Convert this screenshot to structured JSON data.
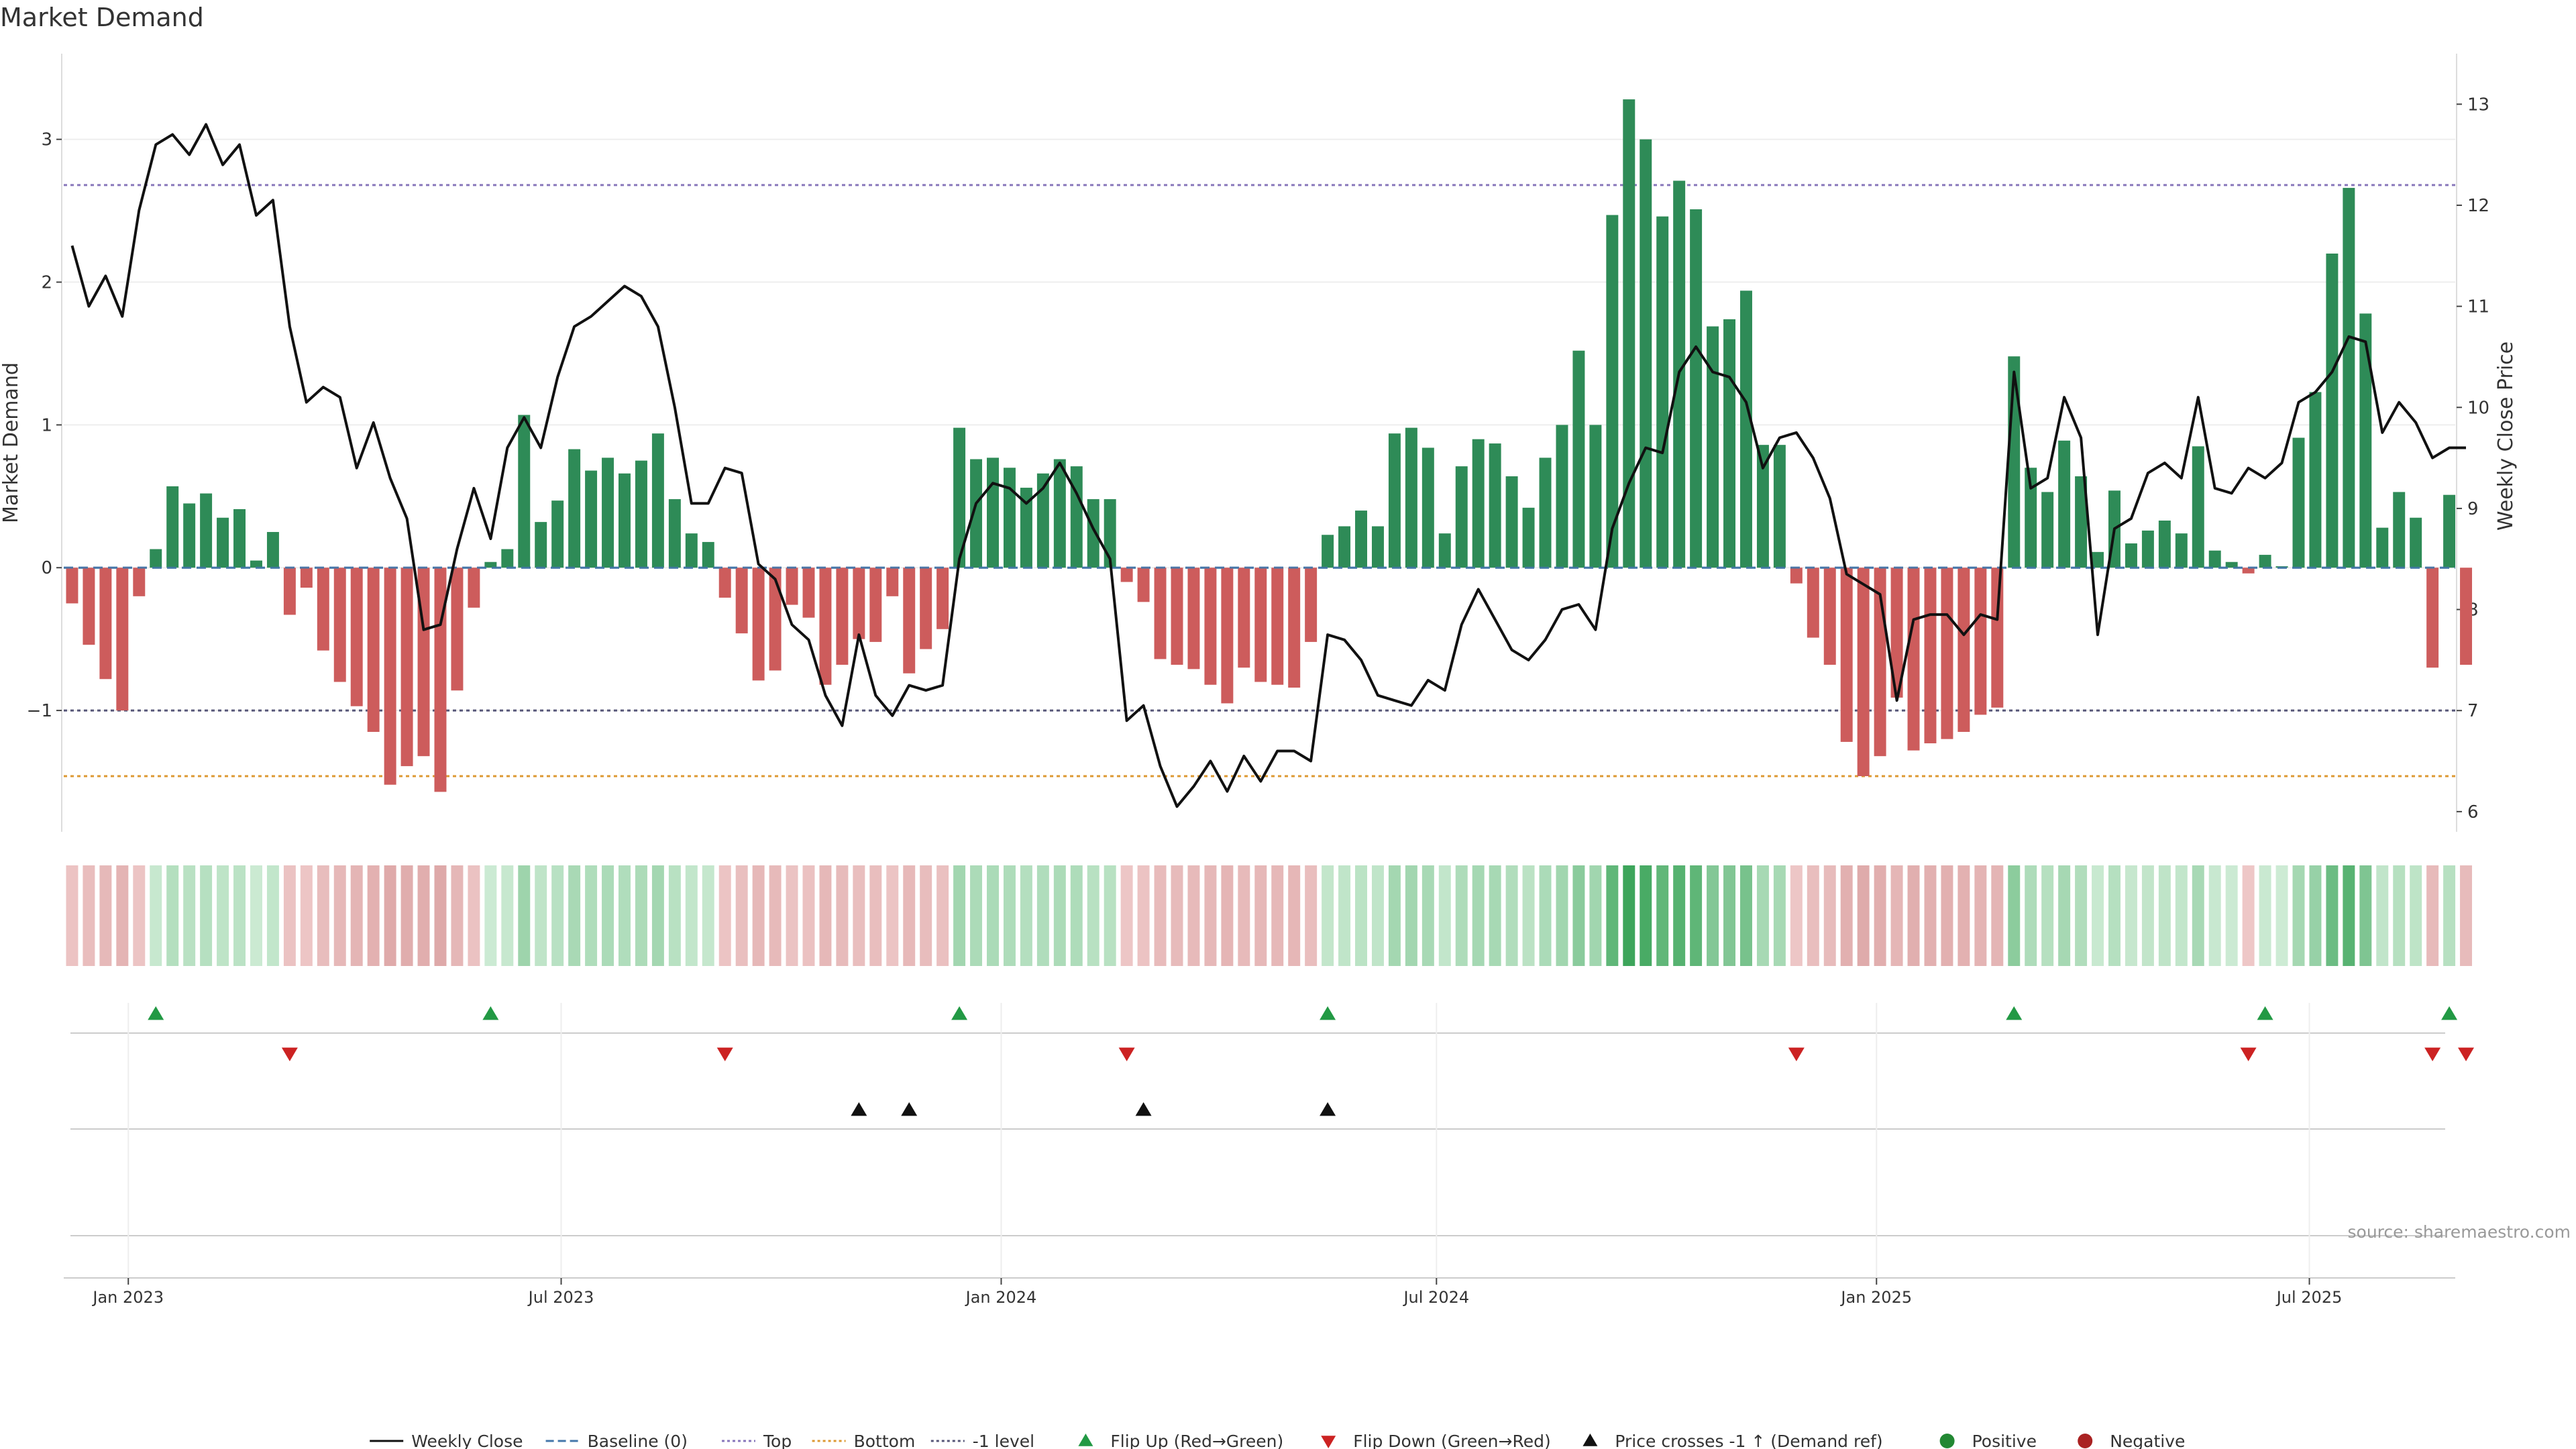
{
  "title": "Market Demand",
  "source": "source: sharemaestro.com",
  "chart_data": {
    "type": "bar",
    "title": "Market Demand",
    "ylabel": "Market Demand",
    "y2label": "Weekly Close Price",
    "ylim": [
      -1.85,
      3.6
    ],
    "y2lim": [
      5.8,
      13.5
    ],
    "yticks": [
      -1,
      0,
      1,
      2,
      3
    ],
    "y2ticks": [
      6,
      7,
      8,
      9,
      10,
      11,
      12,
      13
    ],
    "x_start": "2022-12-05",
    "x_end": "2025-08-31",
    "week_step_days": 7,
    "xticks": [
      {
        "label": "Jan 2023",
        "date": "2023-01-01"
      },
      {
        "label": "Jul 2023",
        "date": "2023-07-01"
      },
      {
        "label": "Jan 2024",
        "date": "2024-01-01"
      },
      {
        "label": "Jul 2024",
        "date": "2024-07-01"
      },
      {
        "label": "Jan 2025",
        "date": "2025-01-01"
      },
      {
        "label": "Jul 2025",
        "date": "2025-07-01"
      }
    ],
    "reference_lines": [
      {
        "name": "Top",
        "value": 2.68,
        "color": "#8877bb"
      },
      {
        "name": "Bottom",
        "value": -1.46,
        "color": "#dd9933"
      },
      {
        "name": "-1 level",
        "value": -1.0,
        "color": "#555577"
      },
      {
        "name": "Baseline (0)",
        "value": 0,
        "color": "#4477aa"
      }
    ],
    "colors": {
      "positive": "#2e8b57",
      "negative": "#cd5c5c",
      "price": "#111111",
      "flip_up": "#229944",
      "flip_down": "#cc2222",
      "cross": "#111111"
    },
    "series": [
      {
        "name": "Market Demand",
        "values": [
          -0.25,
          -0.54,
          -0.78,
          -1.0,
          -0.2,
          0.13,
          0.57,
          0.45,
          0.52,
          0.35,
          0.41,
          0.05,
          0.25,
          -0.33,
          -0.14,
          -0.58,
          -0.8,
          -0.97,
          -1.15,
          -1.52,
          -1.39,
          -1.32,
          -1.57,
          -0.86,
          -0.28,
          0.04,
          0.13,
          1.07,
          0.32,
          0.47,
          0.83,
          0.68,
          0.77,
          0.66,
          0.75,
          0.94,
          0.48,
          0.24,
          0.18,
          -0.21,
          -0.46,
          -0.79,
          -0.72,
          -0.26,
          -0.35,
          -0.82,
          -0.68,
          -0.5,
          -0.52,
          -0.2,
          -0.74,
          -0.57,
          -0.43,
          0.98,
          0.76,
          0.77,
          0.7,
          0.56,
          0.66,
          0.76,
          0.71,
          0.48,
          0.48,
          -0.1,
          -0.24,
          -0.64,
          -0.68,
          -0.71,
          -0.82,
          -0.95,
          -0.7,
          -0.8,
          -0.82,
          -0.84,
          -0.52,
          0.23,
          0.29,
          0.4,
          0.29,
          0.94,
          0.98,
          0.84,
          0.24,
          0.71,
          0.9,
          0.87,
          0.64,
          0.42,
          0.77,
          1.0,
          1.52,
          1.0,
          2.47,
          3.28,
          3.0,
          2.46,
          2.71,
          2.51,
          1.69,
          1.74,
          1.94,
          0.86,
          0.86,
          -0.11,
          -0.49,
          -0.68,
          -1.22,
          -1.46,
          -1.32,
          -0.91,
          -1.28,
          -1.23,
          -1.2,
          -1.15,
          -1.03,
          -0.98,
          1.48,
          0.7,
          0.53,
          0.89,
          0.64,
          0.11,
          0.54,
          0.17,
          0.26,
          0.33,
          0.24,
          0.85,
          0.12,
          0.04,
          -0.04,
          0.09,
          0.01,
          0.91,
          1.23,
          2.2,
          2.66,
          1.78,
          0.28,
          0.53,
          0.35,
          -0.7,
          0.51,
          -0.68
        ]
      },
      {
        "name": "Weekly Close",
        "values": [
          11.6,
          11.0,
          11.3,
          10.9,
          11.95,
          12.6,
          12.7,
          12.5,
          12.8,
          12.4,
          12.6,
          11.9,
          12.05,
          10.8,
          10.05,
          10.2,
          10.1,
          9.4,
          9.85,
          9.3,
          8.9,
          7.8,
          7.85,
          8.6,
          9.2,
          8.7,
          9.6,
          9.9,
          9.6,
          10.3,
          10.8,
          10.9,
          11.05,
          11.2,
          11.1,
          10.8,
          10.0,
          9.05,
          9.05,
          9.4,
          9.35,
          8.45,
          8.3,
          7.85,
          7.7,
          7.15,
          6.85,
          7.75,
          7.15,
          6.95,
          7.25,
          7.2,
          7.25,
          8.5,
          9.05,
          9.25,
          9.2,
          9.05,
          9.2,
          9.45,
          9.15,
          8.8,
          8.5,
          6.9,
          7.05,
          6.45,
          6.05,
          6.25,
          6.5,
          6.2,
          6.55,
          6.3,
          6.6,
          6.6,
          6.5,
          7.75,
          7.7,
          7.5,
          7.15,
          7.1,
          7.05,
          7.3,
          7.2,
          7.85,
          8.2,
          7.9,
          7.6,
          7.5,
          7.7,
          8.0,
          8.05,
          7.8,
          8.8,
          9.25,
          9.6,
          9.55,
          10.35,
          10.6,
          10.35,
          10.3,
          10.05,
          9.4,
          9.7,
          9.75,
          9.5,
          9.1,
          8.35,
          8.25,
          8.15,
          7.1,
          7.9,
          7.95,
          7.95,
          7.75,
          7.95,
          7.9,
          10.35,
          9.2,
          9.3,
          10.1,
          9.7,
          7.75,
          8.8,
          8.9,
          9.35,
          9.45,
          9.3,
          10.1,
          9.2,
          9.15,
          9.4,
          9.3,
          9.45,
          10.05,
          10.15,
          10.35,
          10.7,
          10.65,
          9.75,
          10.05,
          9.85,
          9.5,
          9.6,
          9.6
        ]
      }
    ],
    "heat_strip": {
      "description": "color intensity by Market Demand value"
    },
    "flip_up_indices": [
      5,
      25,
      53,
      75,
      116,
      131,
      142
    ],
    "flip_down_indices": [
      13,
      39,
      63,
      103,
      130,
      141,
      143
    ],
    "price_cross_indices": [
      47,
      50,
      64,
      75
    ],
    "legend": [
      {
        "label": "Weekly Close",
        "kind": "line-solid",
        "color": "#111111"
      },
      {
        "label": "Baseline (0)",
        "kind": "line-dashed",
        "color": "#4477aa"
      },
      {
        "label": "Top",
        "kind": "line-dotted",
        "color": "#8877bb"
      },
      {
        "label": "Bottom",
        "kind": "line-dotted",
        "color": "#dd9933"
      },
      {
        "label": "-1 level",
        "kind": "line-dotted",
        "color": "#555577"
      },
      {
        "label": "Flip Up (Red→Green)",
        "kind": "tri-up",
        "color": "#229944"
      },
      {
        "label": "Flip Down (Green→Red)",
        "kind": "tri-down",
        "color": "#cc2222"
      },
      {
        "label": "Price crosses -1 ↑ (Demand ref)",
        "kind": "tri-up",
        "color": "#111111"
      },
      {
        "label": "Positive",
        "kind": "dot",
        "color": "#228833"
      },
      {
        "label": "Negative",
        "kind": "dot",
        "color": "#aa2222"
      }
    ]
  }
}
